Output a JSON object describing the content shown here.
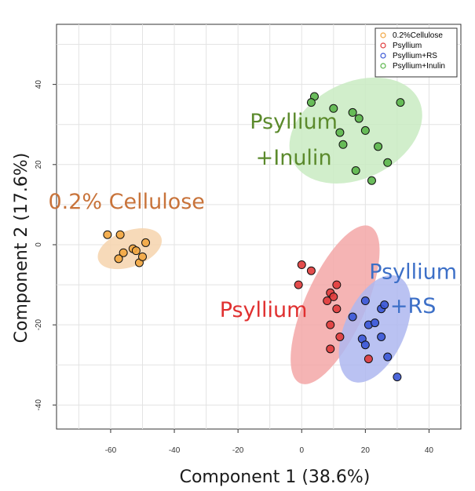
{
  "chart_data": {
    "type": "scatter",
    "xlabel": "Component 1 (38.6%)",
    "ylabel": "Component 2 (17.6%)",
    "xlim": [
      -77,
      50
    ],
    "ylim": [
      -46,
      55
    ],
    "xticks": [
      -60,
      -40,
      -20,
      0,
      20,
      40
    ],
    "yticks": [
      -40,
      -20,
      0,
      20,
      40
    ],
    "grid": true,
    "legend_position": "top-right",
    "series": [
      {
        "name": "0.2%Cellulose",
        "color": "#f2a640",
        "ellipse_color": "#f6d4ad",
        "label_color": "#c8733a",
        "annotation": "0.2% Cellulose",
        "points": [
          [
            -61,
            2.5
          ],
          [
            -57,
            2.5
          ],
          [
            -56,
            -2
          ],
          [
            -57.5,
            -3.5
          ],
          [
            -53,
            -1
          ],
          [
            -52,
            -1.5
          ],
          [
            -51,
            -4.5
          ],
          [
            -49,
            0.5
          ],
          [
            -50,
            -3
          ]
        ],
        "ellipse": {
          "cx": -54,
          "cy": -1,
          "rx": 10.5,
          "ry": 4.5,
          "angle": -20
        }
      },
      {
        "name": "Psyllium",
        "color": "#e03a3a",
        "ellipse_color": "#f3a7a7",
        "label_color": "#e03030",
        "annotation": "Psyllium",
        "points": [
          [
            0,
            -5
          ],
          [
            3,
            -6.5
          ],
          [
            -1,
            -10
          ],
          [
            9,
            -12
          ],
          [
            11,
            -10
          ],
          [
            10,
            -13
          ],
          [
            8,
            -14
          ],
          [
            11,
            -16
          ],
          [
            9,
            -20
          ],
          [
            12,
            -23
          ],
          [
            9,
            -26
          ],
          [
            21,
            -28.5
          ]
        ],
        "ellipse": {
          "cx": 10.5,
          "cy": -15,
          "rx": 27,
          "ry": 7.5,
          "angle": -66
        }
      },
      {
        "name": "Psyllium+RS",
        "color": "#3a57d6",
        "ellipse_color": "#aeb7f0",
        "label_color": "#3c6fc7",
        "annotation": [
          "Psyllium",
          "+RS"
        ],
        "points": [
          [
            20,
            -14
          ],
          [
            16,
            -18
          ],
          [
            21,
            -20
          ],
          [
            23,
            -19.5
          ],
          [
            25,
            -16
          ],
          [
            26,
            -15
          ],
          [
            19,
            -23.5
          ],
          [
            25,
            -23
          ],
          [
            20,
            -25
          ],
          [
            27,
            -28
          ],
          [
            30,
            -33
          ]
        ],
        "ellipse": {
          "cx": 23,
          "cy": -21,
          "rx": 18,
          "ry": 7.5,
          "angle": -66
        }
      },
      {
        "name": "Psyllium+Inulin",
        "color": "#5ab54a",
        "ellipse_color": "#c9ebc2",
        "label_color": "#5b8a2c",
        "annotation": [
          "Psyllium",
          "+Inulin"
        ],
        "points": [
          [
            4,
            37
          ],
          [
            3,
            35.5
          ],
          [
            10,
            34
          ],
          [
            16,
            33
          ],
          [
            18,
            31.5
          ],
          [
            12,
            28
          ],
          [
            20,
            28.5
          ],
          [
            13,
            25
          ],
          [
            24,
            24.5
          ],
          [
            27,
            20.5
          ],
          [
            17,
            18.5
          ],
          [
            22,
            16
          ],
          [
            31,
            35.5
          ]
        ],
        "ellipse": {
          "cx": 17,
          "cy": 28.5,
          "rx": 22,
          "ry": 12,
          "angle": -26
        }
      }
    ],
    "annotation_positions": {
      "0.2%Cellulose": [
        -55,
        9
      ],
      "Psyllium": [
        -12,
        -18
      ],
      "Psyllium+RS": [
        [
          35,
          -8.5
        ],
        [
          35,
          -17
        ]
      ],
      "Psyllium+Inulin": [
        [
          -2.5,
          29
        ],
        [
          -2.5,
          20
        ]
      ]
    }
  }
}
